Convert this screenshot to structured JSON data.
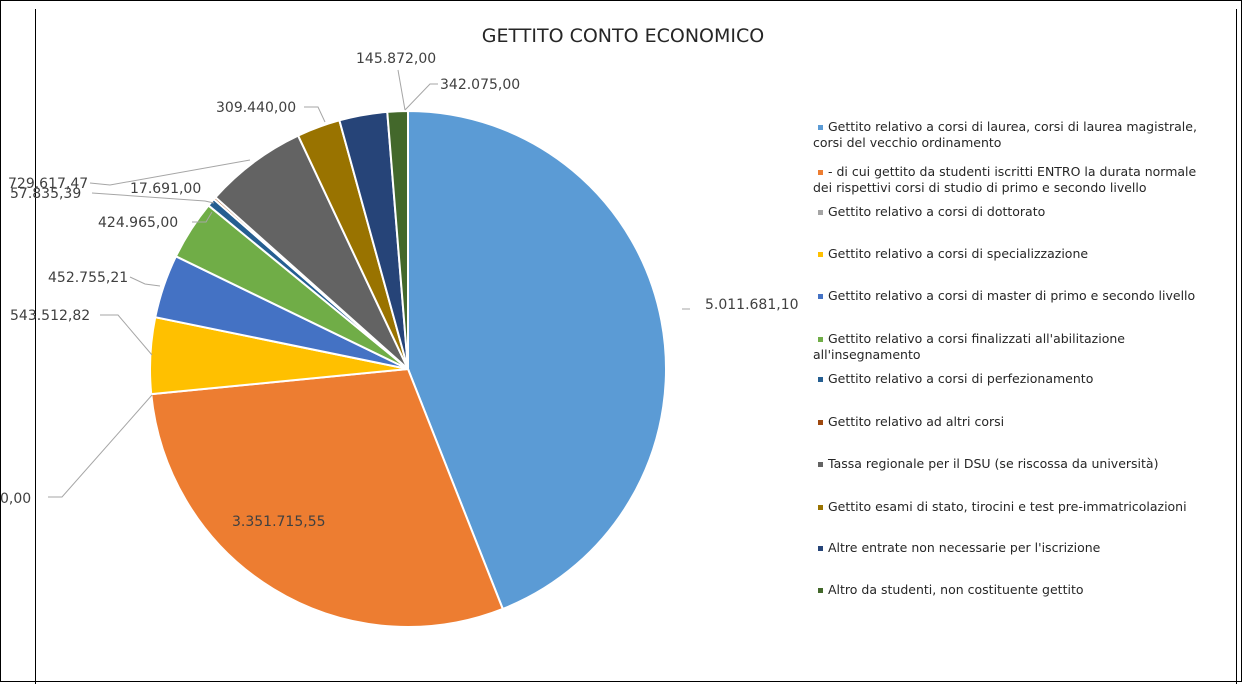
{
  "chart_data": {
    "type": "pie",
    "title": "GETTITO CONTO ECONOMICO",
    "legend_position": "right",
    "slices": [
      {
        "name": "Gettito relativo a corsi di laurea, corsi di laurea magistrale, corsi del vecchio ordinamento",
        "legend_lines": [
          "Gettito relativo a corsi di laurea, corsi di laurea magistrale,",
          "corsi del vecchio ordinamento"
        ],
        "value": 5011681.1,
        "label": "5.011.681,10",
        "color": "#5B9BD5"
      },
      {
        "name": "- di cui gettito da studenti iscritti ENTRO la durata normale dei rispettivi corsi di studio di primo e secondo livello",
        "legend_lines": [
          " -  di cui gettito da studenti iscritti ENTRO la durata normale",
          "dei rispettivi corsi di studio di primo e secondo livello"
        ],
        "value": 3351715.55,
        "label": "3.351.715,55",
        "color": "#ED7D31"
      },
      {
        "name": "Gettito relativo a corsi di dottorato",
        "legend_lines": [
          "Gettito relativo a corsi di dottorato"
        ],
        "value": 0,
        "label": "0,00",
        "color": "#A5A5A5"
      },
      {
        "name": "Gettito relativo a corsi di specializzazione",
        "legend_lines": [
          "Gettito relativo a corsi di specializzazione"
        ],
        "value": 543512.82,
        "label": "543.512,82",
        "color": "#FFC000"
      },
      {
        "name": "Gettito relativo a corsi di master di primo e secondo livello",
        "legend_lines": [
          "Gettito relativo a corsi di master di primo e secondo livello"
        ],
        "value": 452755.21,
        "label": "452.755,21",
        "color": "#4472C4"
      },
      {
        "name": "Gettito relativo a corsi finalizzati all'abilitazione all'insegnamento",
        "legend_lines": [
          "Gettito relativo a corsi finalizzati all'abilitazione",
          "all'insegnamento"
        ],
        "value": 424965.0,
        "label": "424.965,00",
        "color": "#70AD47"
      },
      {
        "name": "Gettito relativo a corsi di perfezionamento",
        "legend_lines": [
          "Gettito relativo a corsi di perfezionamento"
        ],
        "value": 57835.39,
        "label": "57.835,39",
        "color": "#255E91"
      },
      {
        "name": "Gettito relativo ad altri corsi",
        "legend_lines": [
          "Gettito relativo ad altri corsi"
        ],
        "value": 17691.0,
        "label": "17.691,00",
        "color": "#9E480E"
      },
      {
        "name": "Tassa regionale per il DSU (se riscossa da università)",
        "legend_lines": [
          "Tassa regionale per il DSU (se riscossa da università)"
        ],
        "value": 729617.47,
        "label": "729.617,47",
        "color": "#636363"
      },
      {
        "name": "Gettito esami di stato, tirocini e test pre-immatricolazioni",
        "legend_lines": [
          "Gettito esami di stato, tirocini e test pre-immatricolazioni"
        ],
        "value": 309440.0,
        "label": "309.440,00",
        "color": "#997300"
      },
      {
        "name": "Altre entrate non necessarie per l'iscrizione",
        "legend_lines": [
          "Altre entrate non necessarie per l'iscrizione"
        ],
        "value": 342075.0,
        "label": "342.075,00",
        "color": "#264478"
      },
      {
        "name": "Altro da studenti, non costituente gettito",
        "legend_lines": [
          "Altro da studenti, non costituente gettito"
        ],
        "value": 145872.0,
        "label": "145.872,00",
        "color": "#43682B"
      }
    ]
  }
}
